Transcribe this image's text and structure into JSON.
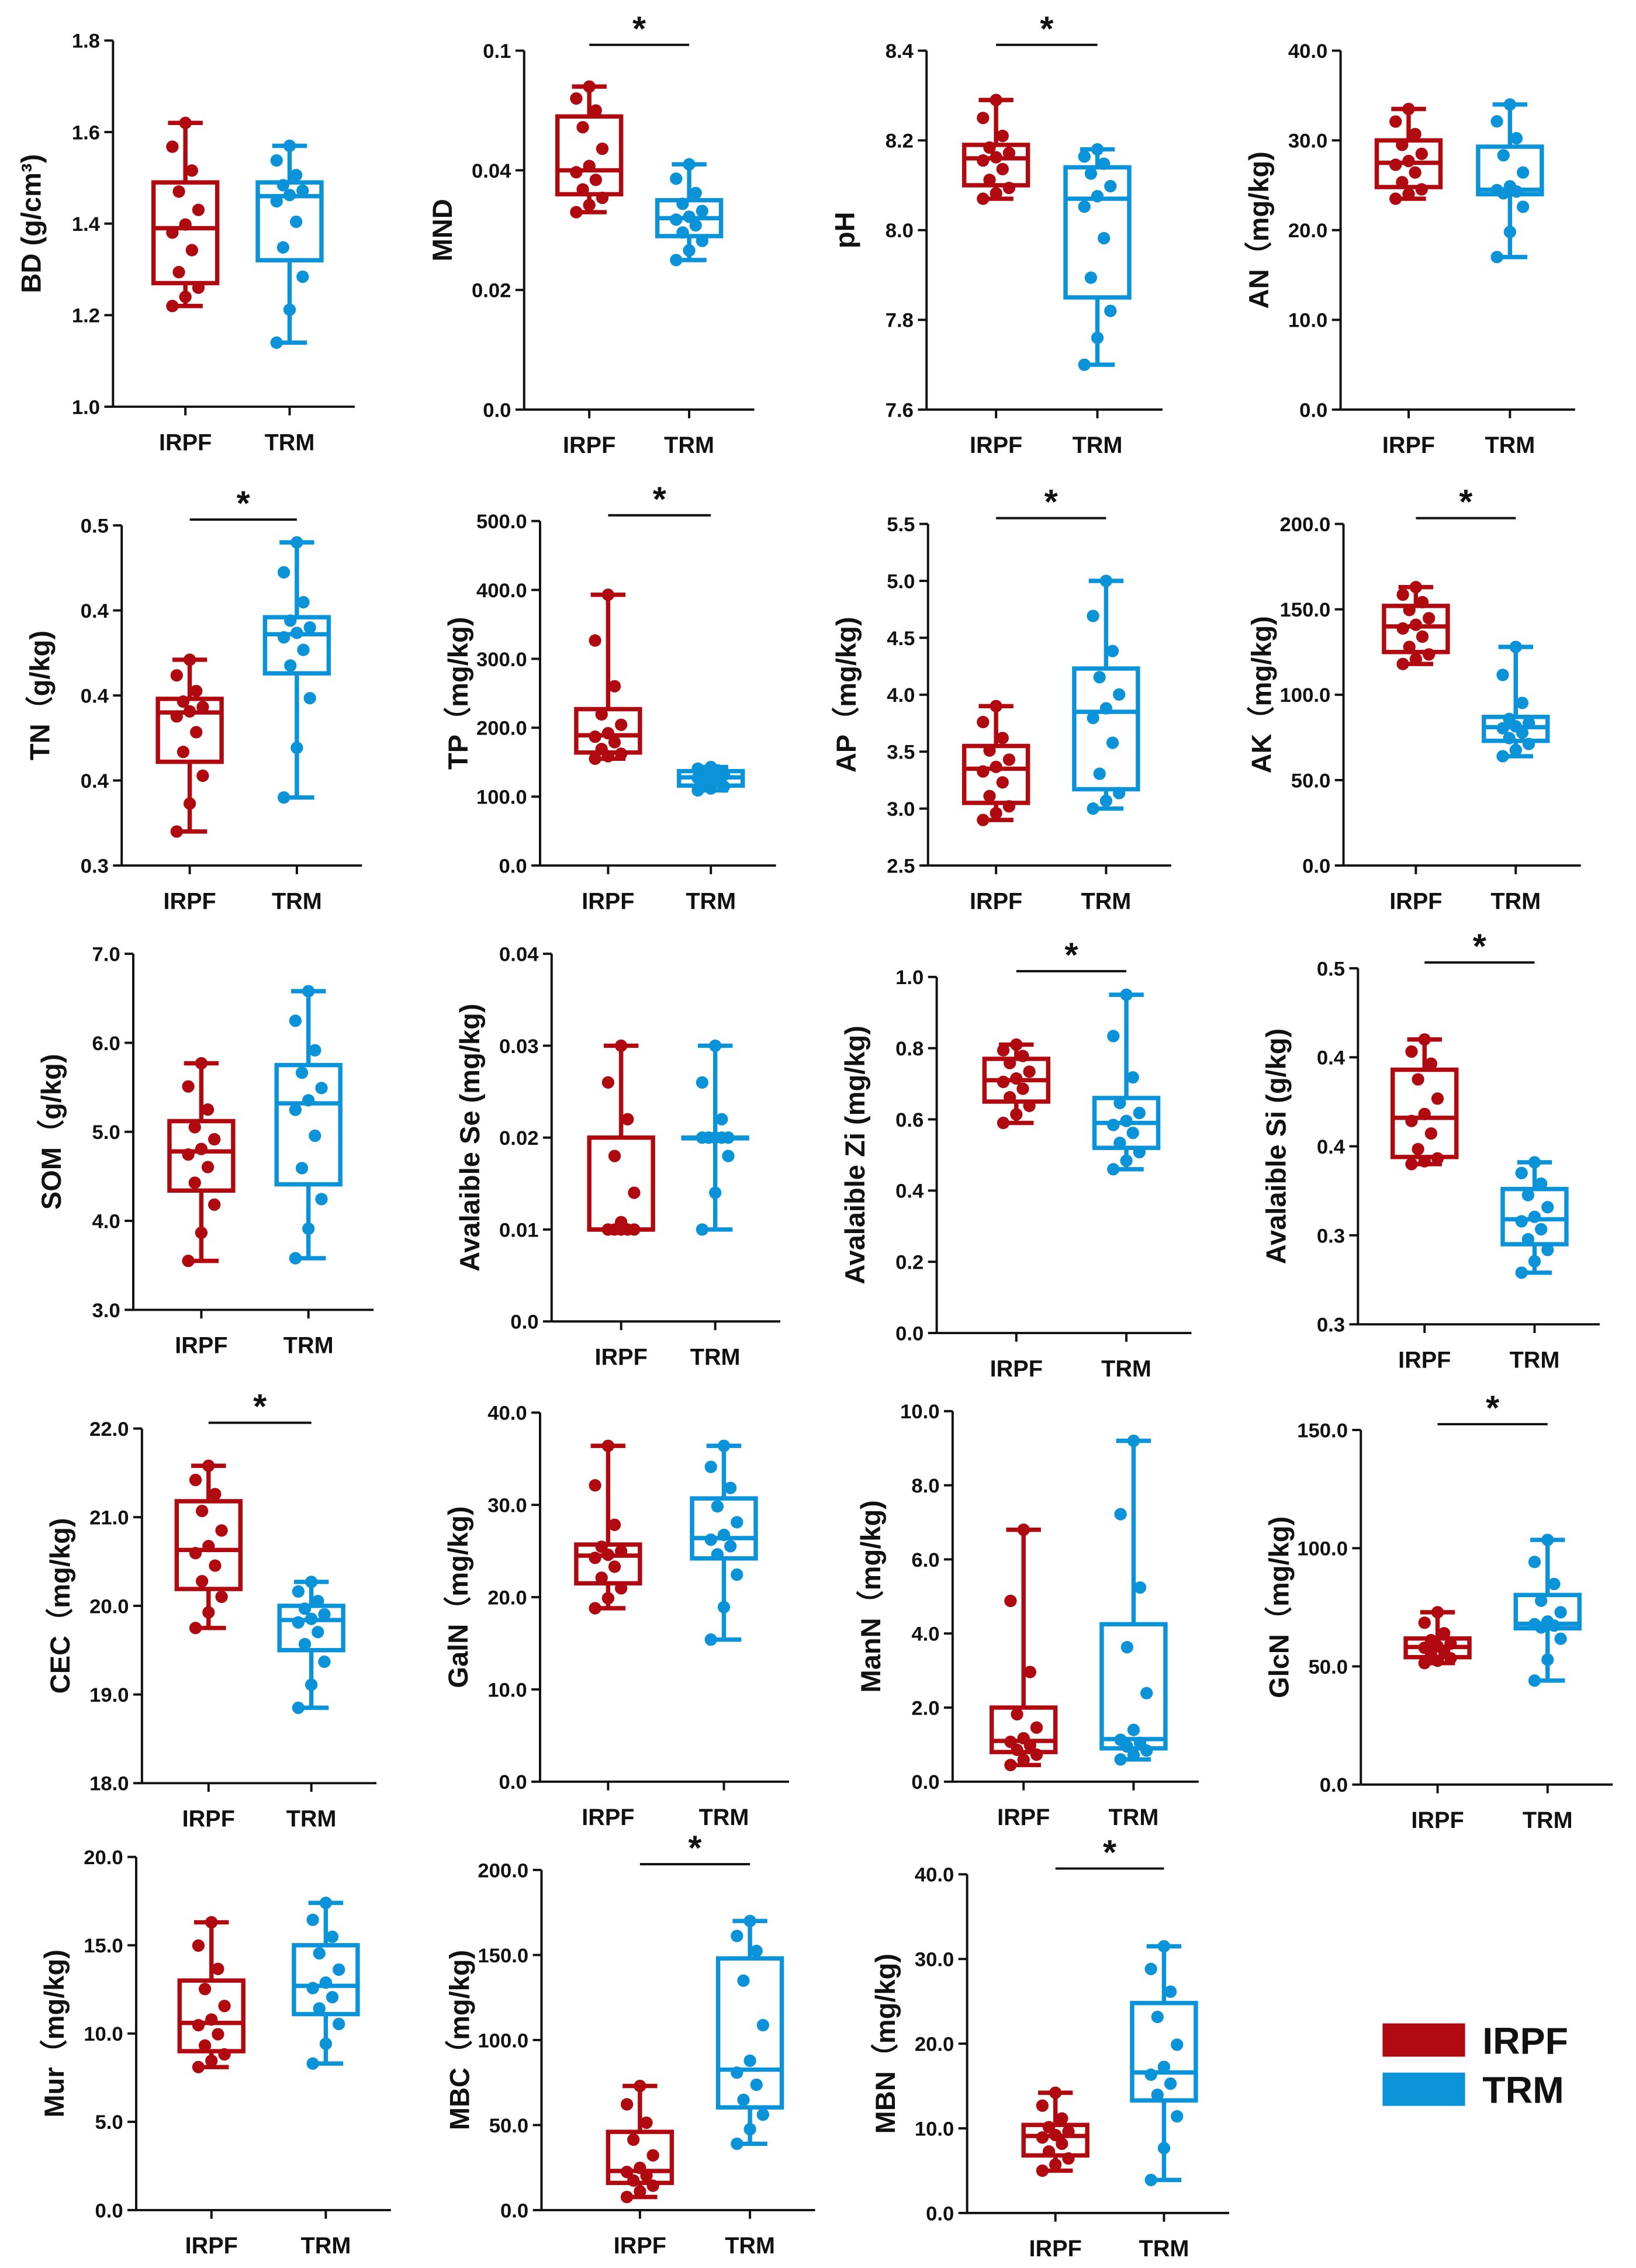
{
  "colors": {
    "IRPF": "#B0090F",
    "TRM": "#0B93D9"
  },
  "legend": [
    {
      "label": "IRPF",
      "color": "#B0090F"
    },
    {
      "label": "TRM",
      "color": "#0B93D9"
    }
  ],
  "chart_data": [
    {
      "type": "box",
      "ylabel": "BD (g/cm³)",
      "ylim": [
        1.0,
        1.8
      ],
      "ticks": [
        1.0,
        1.2,
        1.4,
        1.6,
        1.8
      ],
      "tick_labels": [
        "1.0",
        "1.2",
        "1.4",
        "1.6",
        "1.8"
      ],
      "significant": false,
      "groups": [
        {
          "name": "IRPF",
          "min": 1.22,
          "q1": 1.27,
          "median": 1.39,
          "q3": 1.49,
          "max": 1.62
        },
        {
          "name": "TRM",
          "min": 1.14,
          "q1": 1.32,
          "median": 1.46,
          "q3": 1.49,
          "max": 1.57
        }
      ]
    },
    {
      "type": "box",
      "ylabel": "MND",
      "ylim": [
        0,
        0.06
      ],
      "ticks": [
        0,
        0.02,
        0.04,
        0.06
      ],
      "tick_labels": [
        "0.0",
        "0.02",
        "0.04",
        "0.1"
      ],
      "significant": true,
      "groups": [
        {
          "name": "IRPF",
          "min": 0.033,
          "q1": 0.036,
          "median": 0.04,
          "q3": 0.049,
          "max": 0.054
        },
        {
          "name": "TRM",
          "min": 0.025,
          "q1": 0.029,
          "median": 0.032,
          "q3": 0.035,
          "max": 0.041
        }
      ]
    },
    {
      "type": "box",
      "ylabel": "pH",
      "ylim": [
        7.6,
        8.4
      ],
      "ticks": [
        7.6,
        7.8,
        8.0,
        8.2,
        8.4
      ],
      "tick_labels": [
        "7.6",
        "7.8",
        "8.0",
        "8.2",
        "8.4"
      ],
      "significant": true,
      "groups": [
        {
          "name": "IRPF",
          "min": 8.07,
          "q1": 8.1,
          "median": 8.16,
          "q3": 8.19,
          "max": 8.29
        },
        {
          "name": "TRM",
          "min": 7.7,
          "q1": 7.85,
          "median": 8.07,
          "q3": 8.14,
          "max": 8.18
        }
      ]
    },
    {
      "type": "box",
      "ylabel": "AN（mg/kg)",
      "ylim": [
        0,
        40
      ],
      "ticks": [
        0,
        10,
        20,
        30,
        40
      ],
      "tick_labels": [
        "0.0",
        "10.0",
        "20.0",
        "30.0",
        "40.0"
      ],
      "significant": false,
      "groups": [
        {
          "name": "IRPF",
          "min": 23.5,
          "q1": 24.8,
          "median": 27.5,
          "q3": 30.0,
          "max": 33.5
        },
        {
          "name": "TRM",
          "min": 17.0,
          "q1": 24.0,
          "median": 24.5,
          "q3": 29.3,
          "max": 34.0
        }
      ]
    },
    {
      "type": "box",
      "ylabel": "TN（g/kg)",
      "ylim": [
        0.3,
        0.5
      ],
      "ticks": [
        0.3,
        0.35,
        0.4,
        0.45,
        0.5
      ],
      "tick_labels": [
        "0.3",
        "0.4",
        "0.4",
        "0.4",
        "0.5"
      ],
      "significant": true,
      "groups": [
        {
          "name": "IRPF",
          "min": 0.32,
          "q1": 0.361,
          "median": 0.39,
          "q3": 0.398,
          "max": 0.421
        },
        {
          "name": "TRM",
          "min": 0.34,
          "q1": 0.413,
          "median": 0.436,
          "q3": 0.446,
          "max": 0.49
        }
      ]
    },
    {
      "type": "box",
      "ylabel": "TP（mg/kg)",
      "ylim": [
        0,
        500
      ],
      "ticks": [
        0,
        100,
        200,
        300,
        400,
        500
      ],
      "tick_labels": [
        "0.0",
        "100.0",
        "200.0",
        "300.0",
        "400.0",
        "500.0"
      ],
      "significant": true,
      "groups": [
        {
          "name": "IRPF",
          "min": 155,
          "q1": 164,
          "median": 189,
          "q3": 227,
          "max": 393
        },
        {
          "name": "TRM",
          "min": 109,
          "q1": 116,
          "median": 128,
          "q3": 137,
          "max": 143
        }
      ]
    },
    {
      "type": "box",
      "ylabel": "AP（mg/kg)",
      "ylim": [
        2.5,
        5.5
      ],
      "ticks": [
        2.5,
        3.0,
        3.5,
        4.0,
        4.5,
        5.0,
        5.5
      ],
      "tick_labels": [
        "2.5",
        "3.0",
        "3.5",
        "4.0",
        "4.5",
        "5.0",
        "5.5"
      ],
      "significant": true,
      "groups": [
        {
          "name": "IRPF",
          "min": 2.9,
          "q1": 3.05,
          "median": 3.35,
          "q3": 3.55,
          "max": 3.9
        },
        {
          "name": "TRM",
          "min": 3.0,
          "q1": 3.17,
          "median": 3.85,
          "q3": 4.23,
          "max": 5.0
        }
      ]
    },
    {
      "type": "box",
      "ylabel": "AK（mg/kg)",
      "ylim": [
        0,
        200
      ],
      "ticks": [
        0,
        50,
        100,
        150,
        200
      ],
      "tick_labels": [
        "0.0",
        "50.0",
        "100.0",
        "150.0",
        "200.0"
      ],
      "significant": true,
      "groups": [
        {
          "name": "IRPF",
          "min": 118,
          "q1": 125,
          "median": 140,
          "q3": 152,
          "max": 163
        },
        {
          "name": "TRM",
          "min": 64,
          "q1": 73,
          "median": 81,
          "q3": 87,
          "max": 128
        }
      ]
    },
    {
      "type": "box",
      "ylabel": "SOM（g/kg)",
      "ylim": [
        3,
        7
      ],
      "ticks": [
        3,
        4,
        5,
        6,
        7
      ],
      "tick_labels": [
        "3.0",
        "4.0",
        "5.0",
        "6.0",
        "7.0"
      ],
      "significant": false,
      "groups": [
        {
          "name": "IRPF",
          "min": 3.55,
          "q1": 4.34,
          "median": 4.78,
          "q3": 5.12,
          "max": 5.77
        },
        {
          "name": "TRM",
          "min": 3.58,
          "q1": 4.41,
          "median": 5.32,
          "q3": 5.75,
          "max": 6.58
        }
      ]
    },
    {
      "type": "box",
      "ylabel": "Avalaible Se (mg/kg)",
      "ylim": [
        0,
        0.04
      ],
      "ticks": [
        0,
        0.01,
        0.02,
        0.03,
        0.04
      ],
      "tick_labels": [
        "0.0",
        "0.01",
        "0.02",
        "0.03",
        "0.04"
      ],
      "significant": false,
      "groups": [
        {
          "name": "IRPF",
          "min": 0.01,
          "q1": 0.01,
          "median": 0.01,
          "q3": 0.02,
          "max": 0.03
        },
        {
          "name": "TRM",
          "min": 0.01,
          "q1": 0.02,
          "median": 0.02,
          "q3": 0.02,
          "max": 0.03
        }
      ]
    },
    {
      "type": "box",
      "ylabel": "Avalaible Zi (mg/kg)",
      "ylim": [
        0,
        1.0
      ],
      "ticks": [
        0,
        0.2,
        0.4,
        0.6,
        0.8,
        1.0
      ],
      "tick_labels": [
        "0.0",
        "0.2",
        "0.4",
        "0.6",
        "0.8",
        "1.0"
      ],
      "significant": true,
      "groups": [
        {
          "name": "IRPF",
          "min": 0.59,
          "q1": 0.65,
          "median": 0.71,
          "q3": 0.77,
          "max": 0.81
        },
        {
          "name": "TRM",
          "min": 0.46,
          "q1": 0.52,
          "median": 0.59,
          "q3": 0.66,
          "max": 0.95
        }
      ]
    },
    {
      "type": "box",
      "ylabel": "Avalaible Si (g/kg)",
      "ylim": [
        0.3,
        0.5
      ],
      "ticks": [
        0.3,
        0.35,
        0.4,
        0.45,
        0.5
      ],
      "tick_labels": [
        "0.3",
        "0.3",
        "0.4",
        "0.4",
        "0.5"
      ],
      "significant": true,
      "groups": [
        {
          "name": "IRPF",
          "min": 0.39,
          "q1": 0.394,
          "median": 0.416,
          "q3": 0.443,
          "max": 0.46
        },
        {
          "name": "TRM",
          "min": 0.329,
          "q1": 0.345,
          "median": 0.359,
          "q3": 0.376,
          "max": 0.391
        }
      ]
    },
    {
      "type": "box",
      "ylabel": "CEC（mg/kg)",
      "ylim": [
        18,
        22
      ],
      "ticks": [
        18,
        19,
        20,
        21,
        22
      ],
      "tick_labels": [
        "18.0",
        "19.0",
        "20.0",
        "21.0",
        "22.0"
      ],
      "significant": true,
      "groups": [
        {
          "name": "IRPF",
          "min": 19.75,
          "q1": 20.19,
          "median": 20.63,
          "q3": 21.18,
          "max": 21.58
        },
        {
          "name": "TRM",
          "min": 18.85,
          "q1": 19.5,
          "median": 19.84,
          "q3": 20.0,
          "max": 20.27
        }
      ]
    },
    {
      "type": "box",
      "ylabel": "GalN（mg/kg)",
      "ylim": [
        0,
        40
      ],
      "ticks": [
        0,
        10,
        20,
        30,
        40
      ],
      "tick_labels": [
        "0.0",
        "10.0",
        "20.0",
        "30.0",
        "40.0"
      ],
      "significant": false,
      "groups": [
        {
          "name": "IRPF",
          "min": 18.8,
          "q1": 21.5,
          "median": 24.5,
          "q3": 25.7,
          "max": 36.4
        },
        {
          "name": "TRM",
          "min": 15.4,
          "q1": 24.2,
          "median": 26.4,
          "q3": 30.7,
          "max": 36.4
        }
      ]
    },
    {
      "type": "box",
      "ylabel": "ManN（mg/kg)",
      "ylim": [
        0,
        10
      ],
      "ticks": [
        0,
        2,
        4,
        6,
        8,
        10
      ],
      "tick_labels": [
        "0.0",
        "2.0",
        "4.0",
        "6.0",
        "8.0",
        "10.0"
      ],
      "significant": false,
      "groups": [
        {
          "name": "IRPF",
          "min": 0.45,
          "q1": 0.8,
          "median": 1.1,
          "q3": 2.0,
          "max": 6.8
        },
        {
          "name": "TRM",
          "min": 0.6,
          "q1": 0.9,
          "median": 1.15,
          "q3": 4.25,
          "max": 9.2
        }
      ]
    },
    {
      "type": "box",
      "ylabel": "GlcN（mg/kg)",
      "ylim": [
        0,
        150
      ],
      "ticks": [
        0,
        50,
        100,
        150
      ],
      "tick_labels": [
        "0.0",
        "50.0",
        "100.0",
        "150.0"
      ],
      "significant": true,
      "groups": [
        {
          "name": "IRPF",
          "min": 51.4,
          "q1": 53.9,
          "median": 58.2,
          "q3": 61.8,
          "max": 72.9
        },
        {
          "name": "TRM",
          "min": 44.0,
          "q1": 66.1,
          "median": 68.0,
          "q3": 80.2,
          "max": 103.5
        }
      ]
    },
    {
      "type": "box",
      "ylabel": "Mur（mg/kg)",
      "ylim": [
        0,
        20
      ],
      "ticks": [
        0,
        5,
        10,
        15,
        20
      ],
      "tick_labels": [
        "0.0",
        "5.0",
        "10.0",
        "15.0",
        "20.0"
      ],
      "significant": false,
      "groups": [
        {
          "name": "IRPF",
          "min": 8.1,
          "q1": 9.0,
          "median": 10.6,
          "q3": 13.0,
          "max": 16.3
        },
        {
          "name": "TRM",
          "min": 8.3,
          "q1": 11.1,
          "median": 12.7,
          "q3": 15.0,
          "max": 17.4
        }
      ]
    },
    {
      "type": "box",
      "ylabel": "MBC（mg/kg)",
      "ylim": [
        0,
        200
      ],
      "ticks": [
        0,
        50,
        100,
        150,
        200
      ],
      "tick_labels": [
        "0.0",
        "50.0",
        "100.0",
        "150.0",
        "200.0"
      ],
      "significant": true,
      "groups": [
        {
          "name": "IRPF",
          "min": 7.7,
          "q1": 16,
          "median": 23,
          "q3": 46,
          "max": 73
        },
        {
          "name": "TRM",
          "min": 39,
          "q1": 60.4,
          "median": 82.6,
          "q3": 148,
          "max": 170
        }
      ]
    },
    {
      "type": "box",
      "ylabel": "MBN（mg/kg)",
      "ylim": [
        0,
        40
      ],
      "ticks": [
        0,
        10,
        20,
        30,
        40
      ],
      "tick_labels": [
        "0.0",
        "10.0",
        "20.0",
        "30.0",
        "40.0"
      ],
      "significant": true,
      "groups": [
        {
          "name": "IRPF",
          "min": 5.0,
          "q1": 6.8,
          "median": 9.1,
          "q3": 10.4,
          "max": 14.2
        },
        {
          "name": "TRM",
          "min": 3.9,
          "q1": 13.3,
          "median": 16.6,
          "q3": 24.8,
          "max": 31.5
        }
      ]
    }
  ],
  "significance_marker": "*"
}
